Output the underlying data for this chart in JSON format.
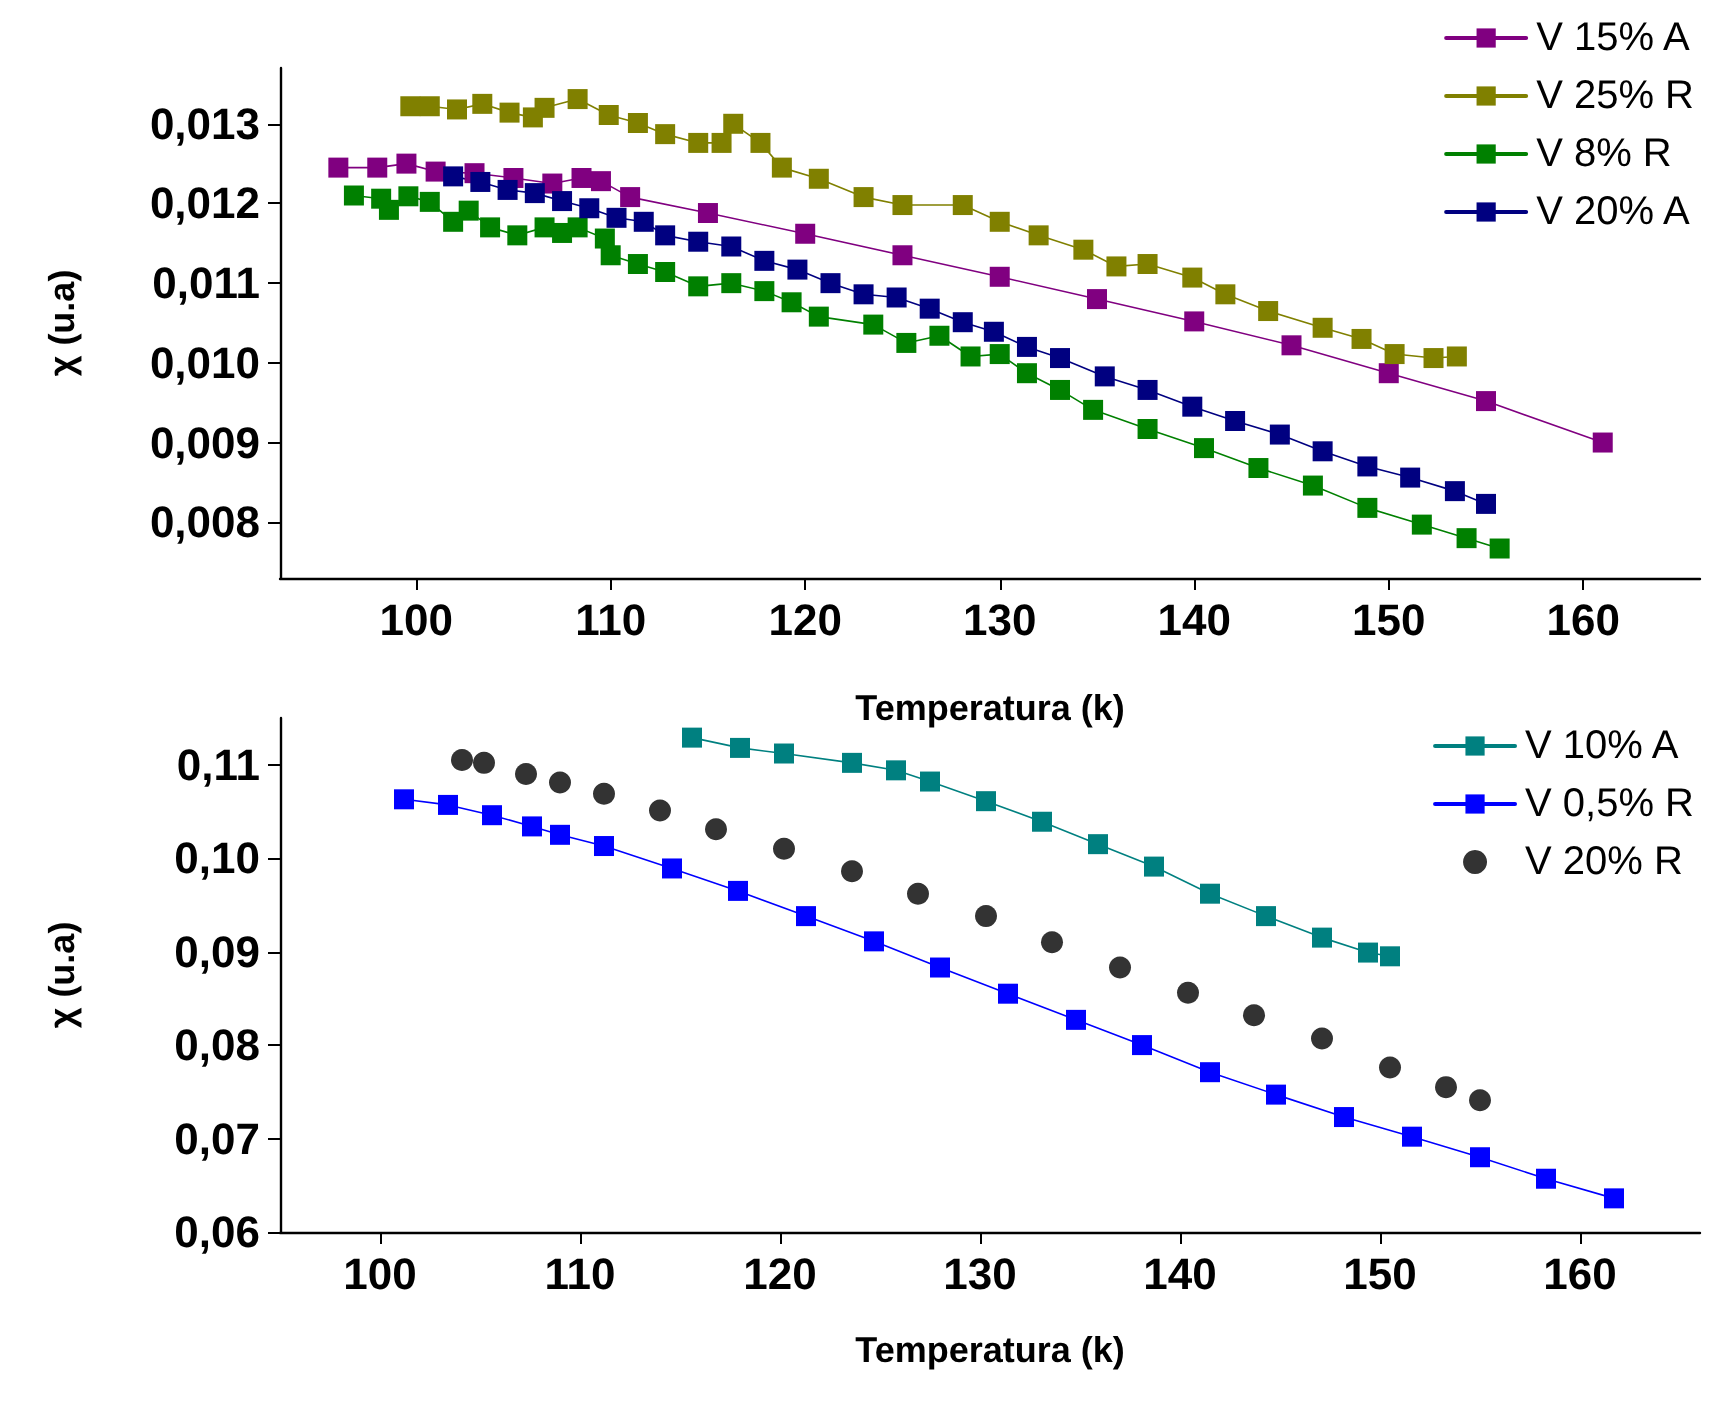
{
  "chart_data": [
    {
      "type": "line",
      "xlabel": "Temperatura (k)",
      "ylabel": "χ (u.a)",
      "xlim": [
        93,
        166
      ],
      "xticks": [
        100,
        110,
        120,
        130,
        140,
        150,
        160
      ],
      "ylim": [
        0.0073,
        0.0137
      ],
      "yticks": [
        {
          "value": 0.008,
          "label": "0,008"
        },
        {
          "value": 0.009,
          "label": "0,009"
        },
        {
          "value": 0.01,
          "label": "0,010"
        },
        {
          "value": 0.011,
          "label": "0,011"
        },
        {
          "value": 0.012,
          "label": "0,012"
        },
        {
          "value": 0.013,
          "label": "0,013"
        }
      ],
      "grid": false,
      "legend": "top right",
      "marker": "square",
      "line_style": "solid",
      "series": [
        {
          "name": "V 15% A",
          "color": "#800080",
          "x": [
            96,
            98,
            99.5,
            101,
            103,
            105,
            107,
            108.5,
            109.5,
            111,
            115,
            120,
            125,
            130,
            135,
            140,
            145,
            150,
            155,
            161
          ],
          "values": [
            0.01245,
            0.01245,
            0.0125,
            0.0124,
            0.01238,
            0.01232,
            0.01225,
            0.01232,
            0.01228,
            0.01208,
            0.01188,
            0.01162,
            0.01135,
            0.01108,
            0.0108,
            0.01052,
            0.01022,
            0.00987,
            0.00952,
            0.009
          ]
        },
        {
          "name": "V 25% R",
          "color": "#808000",
          "x": [
            99.7,
            100.7,
            102.1,
            103.4,
            104.8,
            106,
            106.6,
            108.3,
            109.9,
            111.4,
            112.8,
            114.5,
            115.7,
            116.3,
            117.7,
            118.8,
            120.7,
            123,
            125,
            128.1,
            130,
            132,
            134.3,
            136,
            137.6,
            139.9,
            141.6,
            143.8,
            146.6,
            148.6,
            150.3,
            152.3,
            153.5
          ],
          "values": [
            0.01322,
            0.01322,
            0.01318,
            0.01325,
            0.01314,
            0.01308,
            0.0132,
            0.01331,
            0.01311,
            0.01301,
            0.01287,
            0.01276,
            0.01276,
            0.013,
            0.01276,
            0.01245,
            0.01231,
            0.01208,
            0.01198,
            0.01198,
            0.01177,
            0.0116,
            0.01142,
            0.01121,
            0.01124,
            0.01107,
            0.01086,
            0.01065,
            0.01044,
            0.0103,
            0.01011,
            0.01006,
            0.01008
          ]
        },
        {
          "name": "V 8% R",
          "color": "#008000",
          "x": [
            96.8,
            98.2,
            98.6,
            99.6,
            100.7,
            101.9,
            102.7,
            103.8,
            105.2,
            106.6,
            107.5,
            108.3,
            109.7,
            110,
            111.4,
            112.8,
            114.5,
            116.2,
            117.9,
            119.3,
            120.7,
            123.5,
            125.2,
            126.9,
            128.5,
            130,
            131.4,
            133.1,
            134.8,
            137.6,
            140.5,
            143.3,
            146.1,
            148.9,
            151.7,
            154,
            155.7
          ],
          "values": [
            0.0121,
            0.01206,
            0.01192,
            0.01209,
            0.01202,
            0.01177,
            0.01191,
            0.0117,
            0.0116,
            0.0117,
            0.01163,
            0.0117,
            0.01156,
            0.01135,
            0.01124,
            0.01114,
            0.01096,
            0.011,
            0.0109,
            0.01076,
            0.01058,
            0.01048,
            0.01025,
            0.01034,
            0.01008,
            0.01011,
            0.00987,
            0.00966,
            0.00941,
            0.00917,
            0.00893,
            0.00868,
            0.00846,
            0.00818,
            0.00797,
            0.0078,
            0.00767
          ]
        },
        {
          "name": "V 20% A",
          "color": "#000080",
          "x": [
            101.9,
            103.3,
            104.7,
            106.1,
            107.5,
            108.9,
            110.3,
            111.7,
            112.8,
            114.5,
            116.2,
            117.9,
            119.6,
            121.3,
            123,
            124.7,
            126.4,
            128.1,
            129.7,
            131.4,
            133.1,
            135.4,
            137.6,
            139.9,
            142.1,
            144.4,
            146.6,
            148.9,
            151.1,
            153.4,
            155
          ],
          "values": [
            0.01234,
            0.01227,
            0.01217,
            0.01213,
            0.01203,
            0.01194,
            0.01182,
            0.01177,
            0.0116,
            0.01152,
            0.01146,
            0.01128,
            0.01117,
            0.011,
            0.01086,
            0.01082,
            0.01068,
            0.01051,
            0.01039,
            0.0102,
            0.01006,
            0.00983,
            0.00966,
            0.00945,
            0.00927,
            0.0091,
            0.00889,
            0.0087,
            0.00856,
            0.00839,
            0.00823
          ]
        }
      ]
    },
    {
      "type": "line",
      "xlabel": "Temperatura (k)",
      "ylabel": "χ (u.a)",
      "xlim": [
        95,
        166
      ],
      "xticks": [
        100,
        110,
        120,
        130,
        140,
        150,
        160
      ],
      "ylim": [
        0.06,
        0.115
      ],
      "yticks": [
        {
          "value": 0.06,
          "label": "0,06"
        },
        {
          "value": 0.07,
          "label": "0,07"
        },
        {
          "value": 0.08,
          "label": "0,08"
        },
        {
          "value": 0.09,
          "label": "0,09"
        },
        {
          "value": 0.1,
          "label": "0,10"
        },
        {
          "value": 0.11,
          "label": "0,11"
        }
      ],
      "grid": false,
      "legend": "top right",
      "marker": "square",
      "line_style": "solid",
      "series": [
        {
          "name": "V 10% A",
          "color": "#008080",
          "x": [
            115.6,
            118,
            120.2,
            123.6,
            125.8,
            127.5,
            130.3,
            133.1,
            135.9,
            138.7,
            141.5,
            144.3,
            147.1,
            149.4,
            150.5
          ],
          "values": [
            0.1129,
            0.1118,
            0.1112,
            0.1102,
            0.1094,
            0.1082,
            0.1061,
            0.1039,
            0.1015,
            0.0991,
            0.0962,
            0.0938,
            0.0915,
            0.0899,
            0.0895
          ]
        },
        {
          "name": "V 0,5% R",
          "color": "#0000ff",
          "x": [
            101.2,
            103.4,
            105.6,
            107.6,
            109,
            111.2,
            114.6,
            117.9,
            121.3,
            124.7,
            128,
            131.4,
            134.8,
            138.1,
            141.5,
            144.8,
            148.2,
            151.6,
            155,
            158.3,
            161.7
          ],
          "values": [
            0.1063,
            0.1057,
            0.1046,
            0.1034,
            0.1025,
            0.1013,
            0.0989,
            0.0965,
            0.0938,
            0.0911,
            0.0883,
            0.0855,
            0.0827,
            0.08,
            0.0771,
            0.0747,
            0.0723,
            0.0702,
            0.068,
            0.0657,
            0.0636
          ]
        },
        {
          "name": "V 20% R",
          "color": "#000000",
          "type": "scatter",
          "marker": "circle",
          "x": [
            104.1,
            105.2,
            107.3,
            109,
            111.2,
            114,
            116.8,
            120.2,
            123.6,
            126.9,
            130.3,
            133.6,
            137,
            140.4,
            143.7,
            147.1,
            150.5,
            153.3,
            155
          ],
          "values": [
            0.1105,
            0.1102,
            0.109,
            0.1081,
            0.1069,
            0.1051,
            0.1031,
            0.101,
            0.0986,
            0.0962,
            0.0938,
            0.091,
            0.0883,
            0.0856,
            0.0832,
            0.0807,
            0.0776,
            0.0755,
            0.0741
          ]
        }
      ]
    }
  ]
}
